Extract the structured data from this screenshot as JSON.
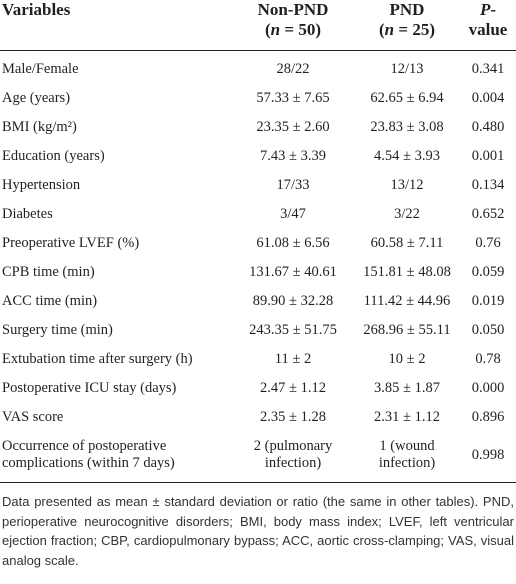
{
  "table": {
    "headers": [
      {
        "lines": [
          [
            "Variables"
          ]
        ]
      },
      {
        "lines": [
          [
            "Non-PND"
          ],
          [
            "(",
            "n",
            " = 50)"
          ]
        ]
      },
      {
        "lines": [
          [
            "PND"
          ],
          [
            "(",
            "n",
            " = 25)"
          ]
        ]
      },
      {
        "lines": [
          [
            "P",
            "-"
          ],
          [
            "value"
          ]
        ]
      }
    ],
    "rows": [
      [
        "Male/Female",
        "28/22",
        "12/13",
        "0.341"
      ],
      [
        "Age (years)",
        "57.33 ± 7.65",
        "62.65 ± 6.94",
        "0.004"
      ],
      [
        "BMI (kg/m²)",
        "23.35 ± 2.60",
        "23.83 ± 3.08",
        "0.480"
      ],
      [
        "Education (years)",
        "7.43 ± 3.39",
        "4.54 ± 3.93",
        "0.001"
      ],
      [
        "Hypertension",
        "17/33",
        "13/12",
        "0.134"
      ],
      [
        "Diabetes",
        "3/47",
        "3/22",
        "0.652"
      ],
      [
        "Preoperative LVEF (%)",
        "61.08 ± 6.56",
        "60.58 ± 7.11",
        "0.76"
      ],
      [
        "CPB time (min)",
        "131.67 ± 40.61",
        "151.81 ± 48.08",
        "0.059"
      ],
      [
        "ACC time (min)",
        "89.90 ± 32.28",
        "111.42 ± 44.96",
        "0.019"
      ],
      [
        "Surgery time (min)",
        "243.35 ± 51.75",
        "268.96 ± 55.11",
        "0.050"
      ],
      [
        "Extubation time after surgery (h)",
        "11 ± 2",
        "10 ± 2",
        "0.78"
      ],
      [
        "Postoperative ICU stay (days)",
        "2.47 ± 1.12",
        "3.85 ± 1.87",
        "0.000"
      ],
      [
        "VAS score",
        "2.35 ± 1.28",
        "2.31 ± 1.12",
        "0.896"
      ],
      [
        "Occurrence of postoperative complications (within 7 days)",
        "2 (pulmonary infection)",
        "1 (wound infection)",
        "0.998"
      ]
    ]
  },
  "footnote": "Data presented as mean ± standard deviation or ratio (the same in other tables). PND, perioperative neurocognitive disorders; BMI, body mass index; LVEF, left ventricular ejection fraction; CBP, cardiopulmonary bypass; ACC, aortic cross-clamping; VAS, visual analog scale."
}
